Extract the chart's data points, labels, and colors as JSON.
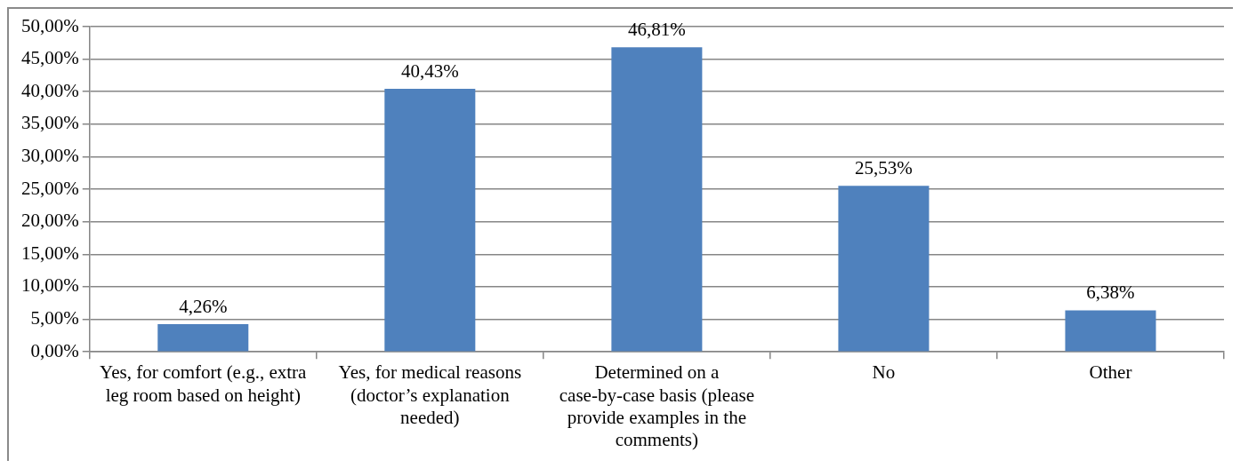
{
  "chart_data": {
    "type": "bar",
    "categories": [
      "Yes, for comfort (e.g., extra leg room based on height)",
      "Yes, for medical reasons (doctor’s explanation needed)",
      "Determined on a case-by-case basis (please provide examples in the comments)",
      "No",
      "Other"
    ],
    "values": [
      4.26,
      40.43,
      46.81,
      25.53,
      6.38
    ],
    "value_labels": [
      "4,26%",
      "40,43%",
      "46,81%",
      "25,53%",
      "6,38%"
    ],
    "color": "#4f81bd",
    "ylim": [
      0,
      50
    ],
    "yticks": [
      {
        "value": 0,
        "label": "0,00%"
      },
      {
        "value": 5,
        "label": "5,00%"
      },
      {
        "value": 10,
        "label": "10,00%"
      },
      {
        "value": 15,
        "label": "15,00%"
      },
      {
        "value": 20,
        "label": "20,00%"
      },
      {
        "value": 25,
        "label": "25,00%"
      },
      {
        "value": 30,
        "label": "30,00%"
      },
      {
        "value": 35,
        "label": "35,00%"
      },
      {
        "value": 40,
        "label": "40,00%"
      },
      {
        "value": 45,
        "label": "45,00%"
      },
      {
        "value": 50,
        "label": "50,00%"
      }
    ],
    "grid": "y"
  }
}
